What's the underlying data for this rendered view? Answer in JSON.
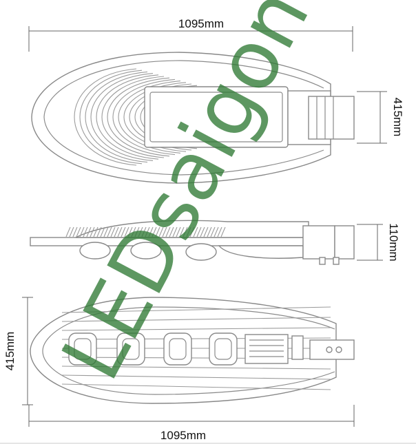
{
  "dimensions": {
    "top_length": "1095mm",
    "top_width": "415mm",
    "side_height": "110mm",
    "bottom_width": "415mm",
    "bottom_length": "1095mm"
  },
  "watermark": "LEDsaigon",
  "colors": {
    "watermark": "#2f7a35",
    "outline": "#888888",
    "dimension": "#666666"
  }
}
